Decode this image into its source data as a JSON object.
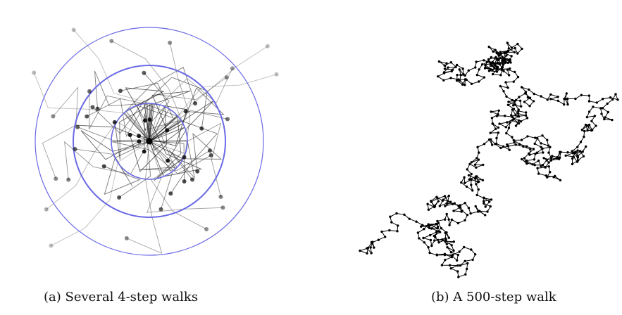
{
  "figure": {
    "panel_a": {
      "caption": "(a) Several 4-step walks",
      "ring_color": "#6a6ae6",
      "walk_color": "#222222",
      "num_walks": 48,
      "steps_per_walk": 4
    },
    "panel_b": {
      "caption": "(b) A 500-step walk",
      "walk_color": "#000000",
      "num_steps": 500
    }
  }
}
